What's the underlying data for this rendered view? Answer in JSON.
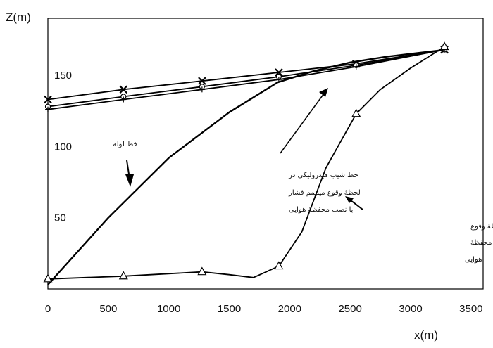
{
  "chart_data": {
    "type": "line",
    "xlabel": "x(m)",
    "ylabel": "Z(m)",
    "xlim": [
      0,
      3600
    ],
    "ylim": [
      0,
      190
    ],
    "xticks": [
      "0",
      "500",
      "1000",
      "1500",
      "2000",
      "2500",
      "3000",
      "3500"
    ],
    "xtick_values": [
      0,
      500,
      1000,
      1500,
      2000,
      2500,
      3000,
      3500
    ],
    "yticks": [
      "50",
      "100",
      "150"
    ],
    "ytick_values": [
      50,
      100,
      150
    ],
    "grid": false,
    "series": [
      {
        "name": "",
        "style": "line",
        "marker": "",
        "x": [
          0,
          500,
          1000,
          1500,
          1900,
          2200,
          2500,
          2800,
          3100,
          3300
        ],
        "y": [
          3,
          50,
          92,
          124,
          145,
          153,
          159,
          163,
          166,
          168
        ]
      },
      {
        "name": "",
        "style": "line",
        "marker": "x",
        "x": [
          0,
          625,
          1275,
          1910,
          2550,
          3280
        ],
        "y": [
          133,
          140,
          146,
          152,
          158,
          168
        ]
      },
      {
        "name": "",
        "style": "line",
        "marker": "o",
        "x": [
          0,
          625,
          1275,
          1910,
          2550,
          3280
        ],
        "y": [
          128,
          135,
          142,
          149,
          157,
          168
        ]
      },
      {
        "name": "",
        "style": "line",
        "marker": "+",
        "x": [
          0,
          625,
          1275,
          1910,
          2550,
          3280
        ],
        "y": [
          126,
          133,
          140,
          147,
          156,
          168
        ]
      },
      {
        "name": "",
        "style": "line",
        "marker": "triangle",
        "x": [
          0,
          625,
          1275,
          1500,
          1700,
          1910,
          2100,
          2300,
          2550,
          2750,
          3000,
          3280
        ],
        "y": [
          7,
          9,
          12,
          10,
          8,
          16,
          40,
          85,
          123,
          140,
          155,
          170
        ]
      }
    ],
    "annotations": [
      {
        "text": "خط لوله"
      },
      {
        "lines": [
          "خط شیب هیدرولیکی در",
          "لحظهٔ وقوع  مینیمم فشار",
          "با نصب محفظهٔ هوایی"
        ]
      },
      {
        "lines": [
          "خط شیب هیدرولیکی در لحظهٔ وقوع",
          "مینیمم فشار بدون نصب محفظهٔ",
          "هوایی"
        ]
      }
    ]
  }
}
